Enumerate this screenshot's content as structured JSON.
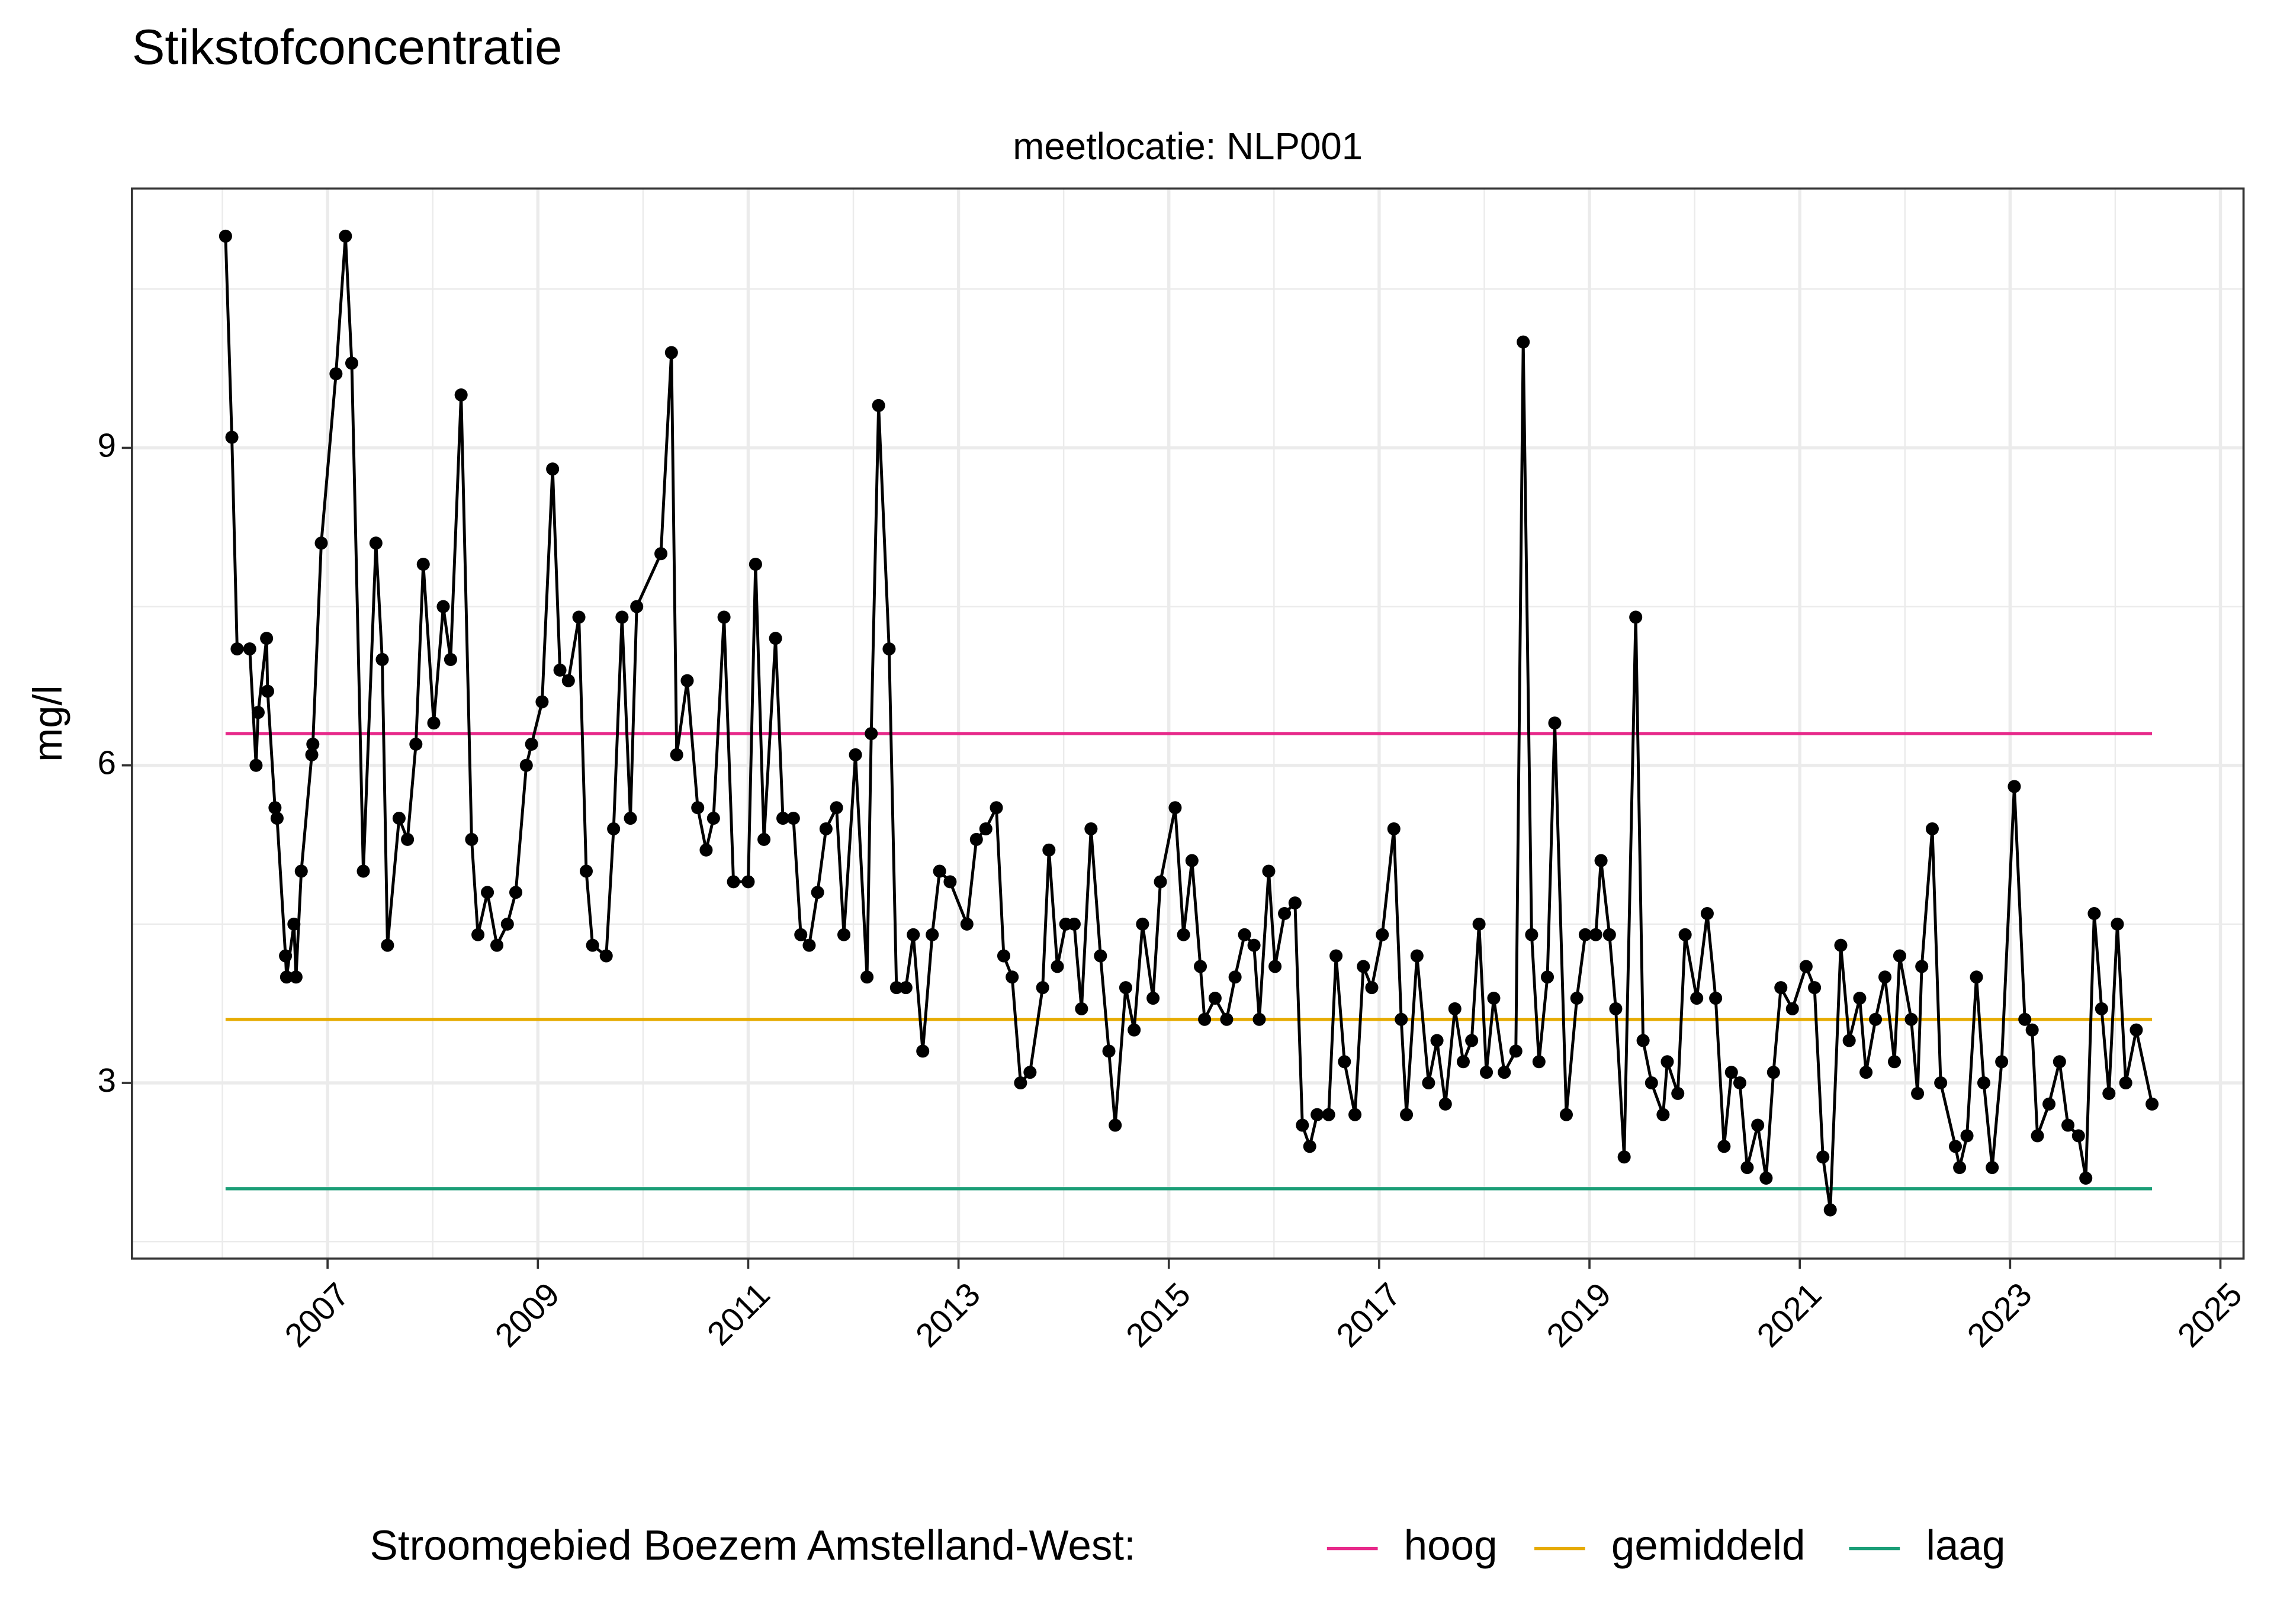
{
  "chart_data": {
    "type": "line",
    "title": "Stikstofconcentratie",
    "subtitle": "meetlocatie: NLP001",
    "ylabel": "mg/l",
    "color": "#000000",
    "x": [
      2006.03,
      2006.09,
      2006.14,
      2006.26,
      2006.32,
      2006.34,
      2006.42,
      2006.43,
      2006.5,
      2006.52,
      2006.6,
      2006.61,
      2006.68,
      2006.7,
      2006.75,
      2006.85,
      2006.86,
      2006.94,
      2007.08,
      2007.17,
      2007.23,
      2007.34,
      2007.46,
      2007.52,
      2007.57,
      2007.68,
      2007.76,
      2007.84,
      2007.91,
      2008.01,
      2008.1,
      2008.17,
      2008.27,
      2008.37,
      2008.43,
      2008.52,
      2008.61,
      2008.71,
      2008.79,
      2008.89,
      2008.94,
      2009.04,
      2009.14,
      2009.21,
      2009.29,
      2009.39,
      2009.46,
      2009.52,
      2009.65,
      2009.72,
      2009.8,
      2009.88,
      2009.94,
      2010.17,
      2010.27,
      2010.32,
      2010.42,
      2010.52,
      2010.6,
      2010.67,
      2010.77,
      2010.86,
      2011.0,
      2011.07,
      2011.15,
      2011.26,
      2011.33,
      2011.43,
      2011.5,
      2011.58,
      2011.66,
      2011.74,
      2011.84,
      2011.91,
      2012.02,
      2012.13,
      2012.17,
      2012.24,
      2012.34,
      2012.41,
      2012.5,
      2012.57,
      2012.66,
      2012.75,
      2012.82,
      2012.92,
      2013.08,
      2013.17,
      2013.26,
      2013.36,
      2013.43,
      2013.51,
      2013.59,
      2013.68,
      2013.8,
      2013.86,
      2013.94,
      2014.02,
      2014.1,
      2014.17,
      2014.26,
      2014.35,
      2014.43,
      2014.49,
      2014.59,
      2014.67,
      2014.75,
      2014.85,
      2014.92,
      2015.06,
      2015.14,
      2015.22,
      2015.3,
      2015.34,
      2015.44,
      2015.55,
      2015.63,
      2015.72,
      2015.81,
      2015.86,
      2015.95,
      2016.01,
      2016.1,
      2016.2,
      2016.27,
      2016.34,
      2016.41,
      2016.52,
      2016.59,
      2016.67,
      2016.77,
      2016.85,
      2016.93,
      2017.03,
      2017.14,
      2017.21,
      2017.26,
      2017.36,
      2017.47,
      2017.55,
      2017.63,
      2017.72,
      2017.8,
      2017.88,
      2017.95,
      2018.02,
      2018.09,
      2018.19,
      2018.3,
      2018.37,
      2018.45,
      2018.52,
      2018.6,
      2018.67,
      2018.78,
      2018.88,
      2018.96,
      2019.06,
      2019.11,
      2019.19,
      2019.25,
      2019.33,
      2019.44,
      2019.51,
      2019.59,
      2019.7,
      2019.74,
      2019.84,
      2019.91,
      2020.02,
      2020.12,
      2020.2,
      2020.28,
      2020.35,
      2020.43,
      2020.5,
      2020.6,
      2020.68,
      2020.75,
      2020.82,
      2020.93,
      2021.06,
      2021.14,
      2021.22,
      2021.29,
      2021.39,
      2021.47,
      2021.57,
      2021.63,
      2021.72,
      2021.81,
      2021.9,
      2021.95,
      2022.06,
      2022.12,
      2022.16,
      2022.26,
      2022.34,
      2022.48,
      2022.52,
      2022.59,
      2022.68,
      2022.75,
      2022.83,
      2022.92,
      2023.04,
      2023.14,
      2023.21,
      2023.26,
      2023.37,
      2023.47,
      2023.55,
      2023.65,
      2023.72,
      2023.8,
      2023.87,
      2023.94,
      2024.02,
      2024.1,
      2024.2,
      2024.35
    ],
    "values": [
      11.0,
      9.1,
      7.1,
      7.1,
      6.0,
      6.5,
      7.2,
      6.7,
      5.6,
      5.5,
      4.2,
      4.0,
      4.5,
      4.0,
      5.0,
      6.1,
      6.2,
      8.1,
      9.7,
      11.0,
      9.8,
      5.0,
      8.1,
      7.0,
      4.3,
      5.5,
      5.3,
      6.2,
      7.9,
      6.4,
      7.5,
      7.0,
      9.5,
      5.3,
      4.4,
      4.8,
      4.3,
      4.5,
      4.8,
      6.0,
      6.2,
      6.6,
      8.8,
      6.9,
      6.8,
      7.4,
      5.0,
      4.3,
      4.2,
      5.4,
      7.4,
      5.5,
      7.5,
      8.0,
      9.9,
      6.1,
      6.8,
      5.6,
      5.2,
      5.5,
      7.4,
      4.9,
      4.9,
      7.9,
      5.3,
      7.2,
      5.5,
      5.5,
      4.4,
      4.3,
      4.8,
      5.4,
      5.6,
      4.4,
      6.1,
      4.0,
      6.3,
      9.4,
      7.1,
      3.9,
      3.9,
      4.4,
      3.3,
      4.4,
      5.0,
      4.9,
      4.5,
      5.3,
      5.4,
      5.6,
      4.2,
      4.0,
      3.0,
      3.1,
      3.9,
      5.2,
      4.1,
      4.5,
      4.5,
      3.7,
      5.4,
      4.2,
      3.3,
      2.6,
      3.9,
      3.5,
      4.5,
      3.8,
      4.9,
      5.6,
      4.4,
      5.1,
      4.1,
      3.6,
      3.8,
      3.6,
      4.0,
      4.4,
      4.3,
      3.6,
      5.0,
      4.1,
      4.6,
      4.7,
      2.6,
      2.4,
      2.7,
      2.7,
      4.2,
      3.2,
      2.7,
      4.1,
      3.9,
      4.4,
      5.4,
      3.6,
      2.7,
      4.2,
      3.0,
      3.4,
      2.8,
      3.7,
      3.2,
      3.4,
      4.5,
      3.1,
      3.8,
      3.1,
      3.3,
      10.0,
      4.4,
      3.2,
      4.0,
      6.4,
      2.7,
      3.8,
      4.4,
      4.4,
      5.1,
      4.4,
      3.7,
      2.3,
      7.4,
      3.4,
      3.0,
      2.7,
      3.2,
      2.9,
      4.4,
      3.8,
      4.6,
      3.8,
      2.4,
      3.1,
      3.0,
      2.2,
      2.6,
      2.1,
      3.1,
      3.9,
      3.7,
      4.1,
      3.9,
      2.3,
      1.8,
      4.3,
      3.4,
      3.8,
      3.1,
      3.6,
      4.0,
      3.2,
      4.2,
      3.6,
      2.9,
      4.1,
      5.4,
      3.0,
      2.4,
      2.2,
      2.5,
      4.0,
      3.0,
      2.2,
      3.2,
      5.8,
      3.6,
      3.5,
      2.5,
      2.8,
      3.2,
      2.6,
      2.5,
      2.1,
      4.6,
      3.7,
      2.9,
      4.5,
      3.0,
      3.5,
      2.8
    ],
    "legend_title": "Stroomgebied Boezem Amstelland-West:",
    "reference_x": [
      2006.03,
      2024.35
    ],
    "reference_lines": [
      {
        "name": "hoog",
        "color": "#e7298a",
        "value": 6.3
      },
      {
        "name": "gemiddeld",
        "color": "#e6ab02",
        "value": 3.6
      },
      {
        "name": "laag",
        "color": "#1b9e77",
        "value": 2.0
      }
    ],
    "xlim": [
      2005.14,
      2025.22
    ],
    "xticks": [
      2007,
      2009,
      2011,
      2013,
      2015,
      2017,
      2019,
      2021,
      2023,
      2025
    ],
    "minor_xticks": [
      2006,
      2008,
      2010,
      2012,
      2014,
      2016,
      2018,
      2020,
      2022,
      2024
    ],
    "ylim": [
      1.34,
      11.45
    ],
    "yticks": [
      3,
      6,
      9
    ],
    "minor_yticks": [
      1.5,
      4.5,
      7.5,
      10.5
    ],
    "grid": true,
    "legend_position": "bottom"
  }
}
